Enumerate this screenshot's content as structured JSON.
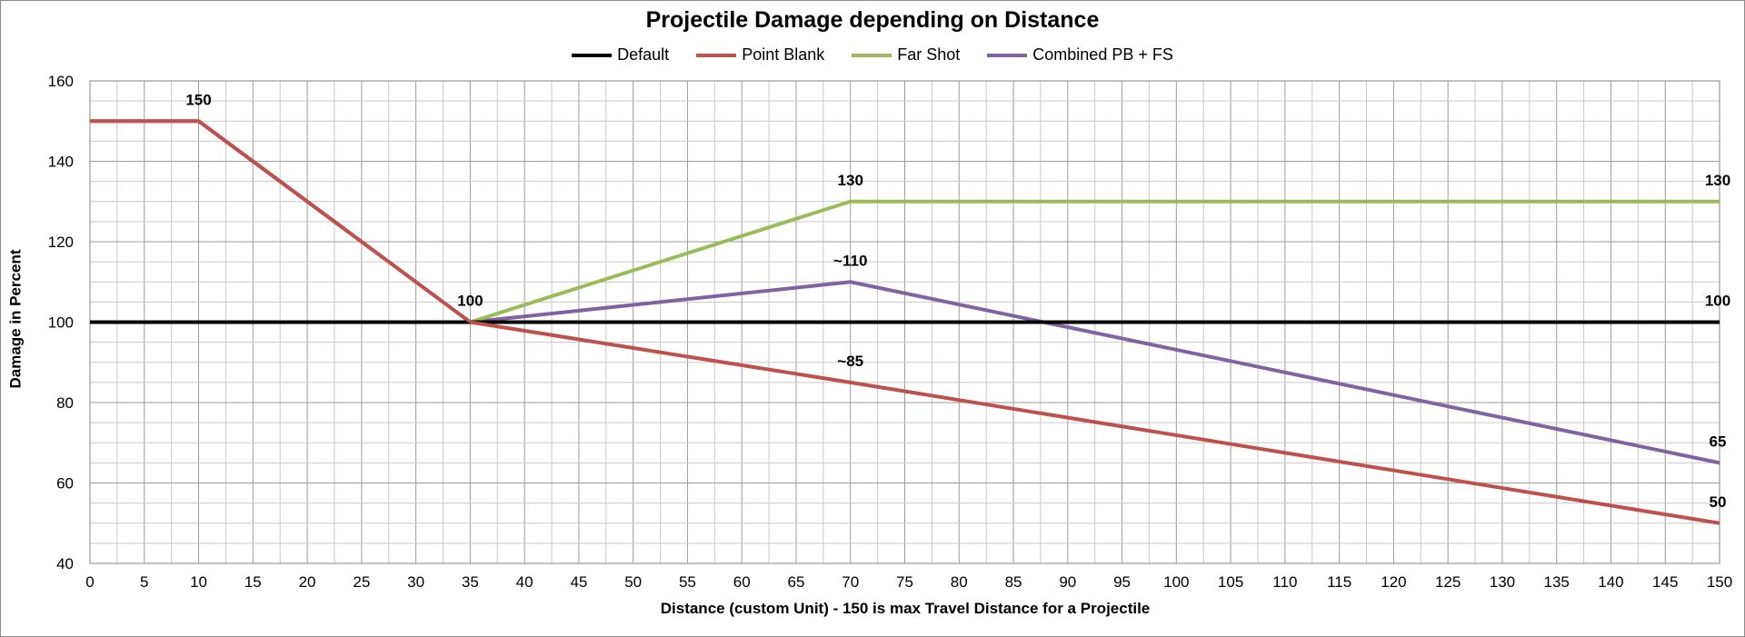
{
  "chart_data": {
    "type": "line",
    "title": "Projectile Damage depending on Distance",
    "xlabel": "Distance (custom Unit) - 150 is max Travel Distance for a Projectile",
    "ylabel": "Damage in Percent",
    "xlim": [
      0,
      150
    ],
    "ylim": [
      40,
      160
    ],
    "x_ticks": [
      0,
      5,
      10,
      15,
      20,
      25,
      30,
      35,
      40,
      45,
      50,
      55,
      60,
      65,
      70,
      75,
      80,
      85,
      90,
      95,
      100,
      105,
      110,
      115,
      120,
      125,
      130,
      135,
      140,
      145,
      150
    ],
    "y_ticks": [
      40,
      60,
      80,
      100,
      120,
      140,
      160
    ],
    "grid": true,
    "legend_position": "top",
    "series": [
      {
        "name": "Default",
        "color": "#000000",
        "x": [
          0,
          150
        ],
        "y": [
          100,
          100
        ]
      },
      {
        "name": "Point Blank",
        "color": "#c0504d",
        "x": [
          0,
          10,
          35,
          70,
          150
        ],
        "y": [
          150,
          150,
          100,
          85,
          50
        ]
      },
      {
        "name": "Far Shot",
        "color": "#9bbb59",
        "x": [
          0,
          35,
          70,
          150
        ],
        "y": [
          100,
          100,
          130,
          130
        ]
      },
      {
        "name": "Combined PB + FS",
        "color": "#8064a2",
        "x": [
          0,
          10,
          35,
          70,
          150
        ],
        "y": [
          150,
          150,
          100,
          110,
          65
        ]
      }
    ],
    "annotations": [
      {
        "text": "150",
        "x": 10,
        "y": 150
      },
      {
        "text": "100",
        "x": 35,
        "y": 100
      },
      {
        "text": "130",
        "x": 70,
        "y": 130
      },
      {
        "text": "~110",
        "x": 70,
        "y": 110
      },
      {
        "text": "~85",
        "x": 70,
        "y": 85
      },
      {
        "text": "130",
        "x": 150,
        "y": 130
      },
      {
        "text": "100",
        "x": 150,
        "y": 100
      },
      {
        "text": "65",
        "x": 150,
        "y": 65
      },
      {
        "text": "50",
        "x": 150,
        "y": 50
      }
    ]
  }
}
